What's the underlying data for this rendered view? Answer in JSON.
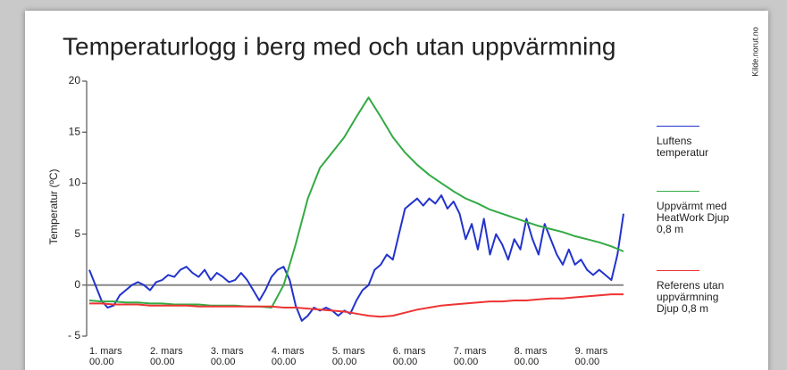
{
  "chart_data": {
    "type": "line",
    "title": "Temperaturlogg i berg med och utan uppvärmning",
    "source": "Kilde.norut.no",
    "ylabel": "Temperatur (ºC)",
    "ylim": [
      -5,
      20
    ],
    "yticks": [
      {
        "value": -5,
        "label": "- 5"
      },
      0,
      5,
      10,
      15,
      20
    ],
    "xlim": [
      0,
      8.8
    ],
    "xticks": [
      {
        "value": 0,
        "label": "1. mars",
        "time": "00.00"
      },
      {
        "value": 1,
        "label": "2. mars",
        "time": "00.00"
      },
      {
        "value": 2,
        "label": "3. mars",
        "time": "00.00"
      },
      {
        "value": 3,
        "label": "4. mars",
        "time": "00.00"
      },
      {
        "value": 4,
        "label": "5. mars",
        "time": "00.00"
      },
      {
        "value": 5,
        "label": "6. mars",
        "time": "00.00"
      },
      {
        "value": 6,
        "label": "7. mars",
        "time": "00.00"
      },
      {
        "value": 7,
        "label": "8. mars",
        "time": "00.00"
      },
      {
        "value": 8,
        "label": "9. mars",
        "time": "00.00"
      }
    ],
    "zero_line": true,
    "series": [
      {
        "name": "Luftens temperatur",
        "color": "#2233cc",
        "x": [
          0,
          0.1,
          0.2,
          0.3,
          0.4,
          0.5,
          0.6,
          0.7,
          0.8,
          0.9,
          1,
          1.1,
          1.2,
          1.3,
          1.4,
          1.5,
          1.6,
          1.7,
          1.8,
          1.9,
          2,
          2.1,
          2.2,
          2.3,
          2.4,
          2.5,
          2.6,
          2.7,
          2.8,
          2.9,
          3,
          3.1,
          3.2,
          3.3,
          3.4,
          3.5,
          3.6,
          3.7,
          3.8,
          3.9,
          4,
          4.1,
          4.2,
          4.3,
          4.4,
          4.5,
          4.6,
          4.7,
          4.8,
          4.9,
          5,
          5.1,
          5.2,
          5.3,
          5.4,
          5.5,
          5.6,
          5.7,
          5.8,
          5.9,
          6,
          6.1,
          6.2,
          6.3,
          6.4,
          6.5,
          6.6,
          6.7,
          6.8,
          6.9,
          7,
          7.1,
          7.2,
          7.3,
          7.4,
          7.5,
          7.6,
          7.7,
          7.8,
          7.9,
          8,
          8.1,
          8.2,
          8.3,
          8.4,
          8.5,
          8.6,
          8.7,
          8.8
        ],
        "values": [
          1.5,
          0,
          -1.5,
          -2.2,
          -2,
          -1,
          -0.5,
          0,
          0.3,
          0,
          -0.5,
          0.3,
          0.5,
          1,
          0.8,
          1.5,
          1.8,
          1.2,
          0.8,
          1.5,
          0.5,
          1.2,
          0.8,
          0.3,
          0.5,
          1.2,
          0.5,
          -0.5,
          -1.5,
          -0.5,
          0.8,
          1.5,
          1.8,
          0.5,
          -2,
          -3.5,
          -3,
          -2.2,
          -2.5,
          -2.2,
          -2.5,
          -3,
          -2.5,
          -2.8,
          -1.5,
          -0.5,
          0,
          1.5,
          2,
          3,
          2.5,
          5,
          7.5,
          8,
          8.5,
          7.8,
          8.5,
          8,
          8.8,
          7.5,
          8.2,
          7,
          4.5,
          6,
          3.5,
          6.5,
          3,
          5,
          4,
          2.5,
          4.5,
          3.5,
          6.5,
          4.5,
          3,
          6,
          4.5,
          3,
          2,
          3.5,
          2,
          2.5,
          1.5,
          1,
          1.5,
          1,
          0.5,
          3,
          7
        ]
      },
      {
        "name": "Uppvärmt med HeatWork Djup 0,8 m",
        "color": "#33aa44",
        "x": [
          0,
          0.2,
          0.4,
          0.6,
          0.8,
          1,
          1.2,
          1.4,
          1.6,
          1.8,
          2,
          2.2,
          2.4,
          2.6,
          2.8,
          3,
          3.2,
          3.4,
          3.6,
          3.8,
          4,
          4.2,
          4.4,
          4.6,
          4.8,
          5,
          5.2,
          5.4,
          5.6,
          5.8,
          6,
          6.2,
          6.4,
          6.6,
          6.8,
          7,
          7.2,
          7.4,
          7.6,
          7.8,
          8,
          8.2,
          8.4,
          8.6,
          8.8
        ],
        "values": [
          -1.5,
          -1.6,
          -1.6,
          -1.7,
          -1.7,
          -1.8,
          -1.8,
          -1.9,
          -1.9,
          -1.9,
          -2,
          -2,
          -2,
          -2.1,
          -2.1,
          -2.2,
          0,
          4,
          8.5,
          11.5,
          13,
          14.5,
          16.5,
          18.4,
          16.5,
          14.5,
          13,
          11.8,
          10.8,
          10,
          9.2,
          8.5,
          8,
          7.4,
          7,
          6.6,
          6.2,
          5.8,
          5.5,
          5.2,
          4.8,
          4.5,
          4.2,
          3.8,
          3.3
        ]
      },
      {
        "name": "Referens utan uppvärmning Djup 0,8 m",
        "color": "#ee3333",
        "x": [
          0,
          0.2,
          0.4,
          0.6,
          0.8,
          1,
          1.2,
          1.4,
          1.6,
          1.8,
          2,
          2.2,
          2.4,
          2.6,
          2.8,
          3,
          3.2,
          3.4,
          3.6,
          3.8,
          4,
          4.2,
          4.4,
          4.6,
          4.8,
          5,
          5.2,
          5.4,
          5.6,
          5.8,
          6,
          6.2,
          6.4,
          6.6,
          6.8,
          7,
          7.2,
          7.4,
          7.6,
          7.8,
          8,
          8.2,
          8.4,
          8.6,
          8.8
        ],
        "values": [
          -1.8,
          -1.8,
          -1.9,
          -1.9,
          -1.9,
          -2,
          -2,
          -2,
          -2,
          -2.1,
          -2.1,
          -2.1,
          -2.1,
          -2.1,
          -2.1,
          -2.1,
          -2.2,
          -2.2,
          -2.3,
          -2.4,
          -2.5,
          -2.6,
          -2.8,
          -3,
          -3.1,
          -3,
          -2.7,
          -2.4,
          -2.2,
          -2,
          -1.9,
          -1.8,
          -1.7,
          -1.6,
          -1.6,
          -1.5,
          -1.5,
          -1.4,
          -1.3,
          -1.3,
          -1.2,
          -1.1,
          -1,
          -0.9,
          -0.9
        ]
      }
    ]
  }
}
